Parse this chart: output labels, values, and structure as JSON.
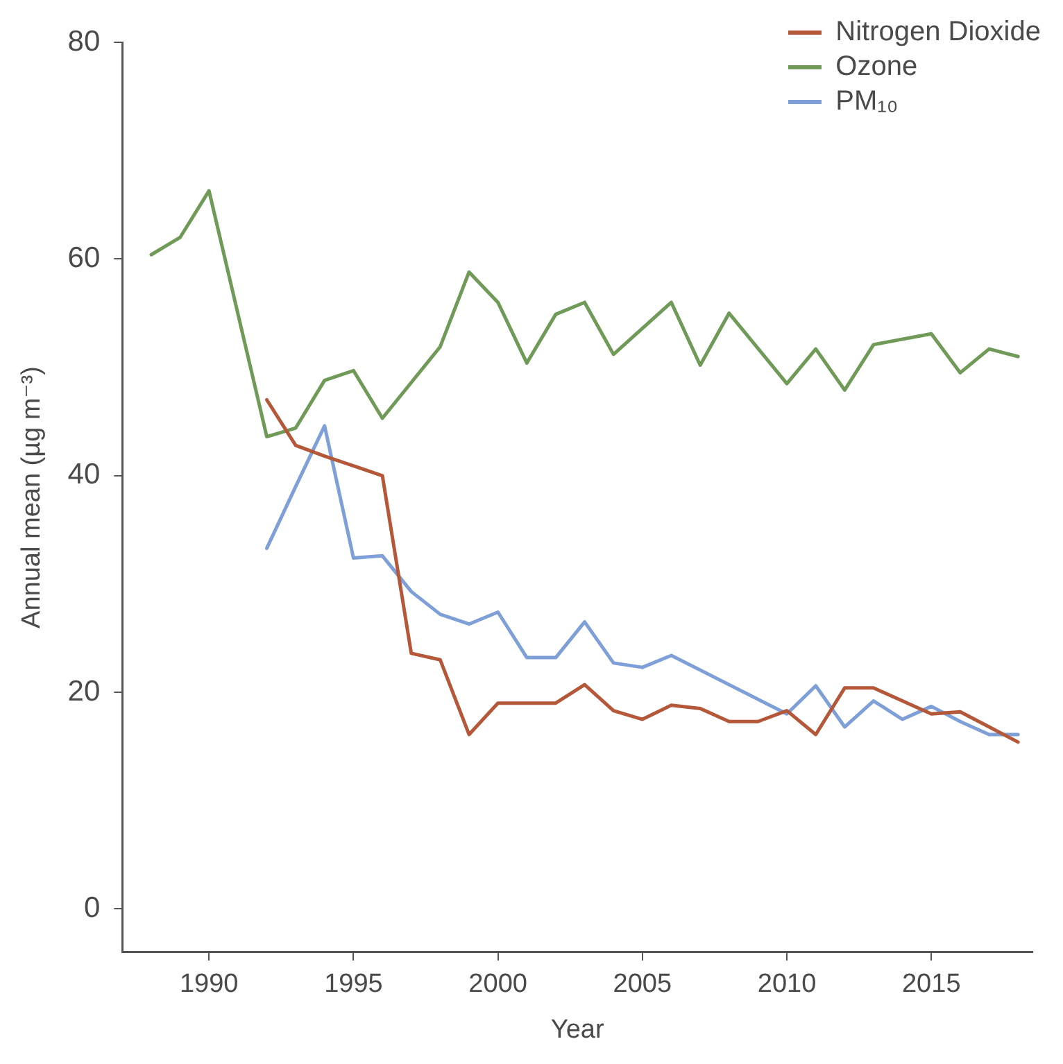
{
  "chart_data": {
    "type": "line",
    "xlabel": "Year",
    "ylabel": "Annual mean (µg m⁻³)",
    "xlim": [
      1987,
      2018.5
    ],
    "xticks": [
      1990,
      1995,
      2000,
      2005,
      2010,
      2015
    ],
    "ylim": [
      -4,
      80
    ],
    "yticks": [
      0,
      20,
      40,
      60,
      80
    ],
    "grid": false,
    "legend": "top right",
    "marker": "none",
    "line_style": "solid",
    "series": [
      {
        "name": "Nitrogen Dioxide",
        "color": "#b5583a",
        "x": [
          1992,
          1993,
          1994,
          1995,
          1996,
          1997,
          1998,
          1999,
          2000,
          2001,
          2002,
          2003,
          2004,
          2005,
          2006,
          2007,
          2008,
          2009,
          2010,
          2011,
          2012,
          2013,
          2014,
          2015,
          2016,
          2017,
          2018
        ],
        "values": [
          47.0,
          42.8,
          41.8,
          40.9,
          40.0,
          23.6,
          23.0,
          16.1,
          19.0,
          19.0,
          19.0,
          20.7,
          18.3,
          17.5,
          18.8,
          18.5,
          17.3,
          17.3,
          18.3,
          16.1,
          20.4,
          20.4,
          19.2,
          18.0,
          18.2,
          16.8,
          15.4
        ]
      },
      {
        "name": "Ozone",
        "color": "#6f9a58",
        "x": [
          1988,
          1989,
          1990,
          1992,
          1993,
          1994,
          1995,
          1996,
          1998,
          1999,
          2000,
          2001,
          2002,
          2003,
          2004,
          2006,
          2007,
          2008,
          2010,
          2011,
          2012,
          2013,
          2015,
          2016,
          2017,
          2018
        ],
        "values": [
          60.4,
          62.0,
          66.3,
          43.6,
          44.4,
          48.8,
          49.7,
          45.3,
          51.9,
          58.8,
          56.0,
          50.4,
          54.9,
          56.0,
          51.2,
          56.0,
          50.2,
          55.0,
          48.5,
          51.7,
          47.9,
          52.1,
          53.1,
          49.5,
          51.7,
          51.0
        ]
      },
      {
        "name": "PM₁₀",
        "color": "#7f9fd8",
        "x": [
          1992,
          1993,
          1994,
          1995,
          1996,
          1997,
          1998,
          1999,
          2000,
          2001,
          2002,
          2003,
          2004,
          2005,
          2006,
          2010,
          2011,
          2012,
          2013,
          2014,
          2015,
          2016,
          2017,
          2018
        ],
        "values": [
          33.3,
          39.0,
          44.6,
          32.4,
          32.6,
          29.3,
          27.2,
          26.3,
          27.4,
          23.2,
          23.2,
          26.5,
          22.7,
          22.3,
          23.4,
          18.0,
          20.6,
          16.8,
          19.2,
          17.5,
          18.7,
          17.3,
          16.1,
          16.1
        ]
      }
    ]
  }
}
